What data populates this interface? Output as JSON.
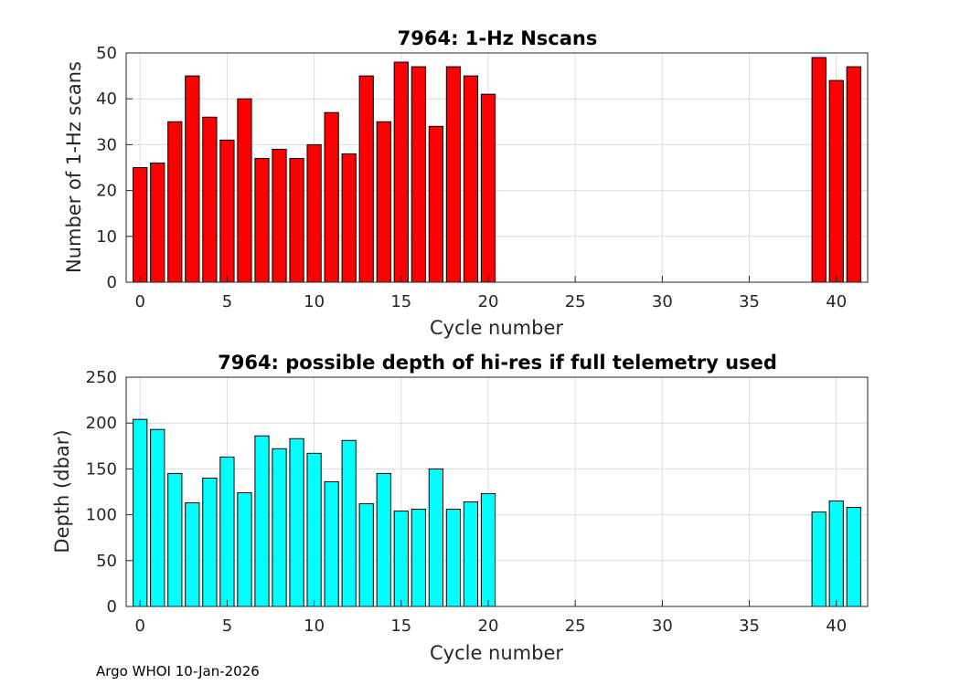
{
  "footnote": "Argo WHOI 10-Jan-2026",
  "chart_data": [
    {
      "type": "bar",
      "title": "7964: 1-Hz Nscans",
      "xlabel": "Cycle number",
      "ylabel": "Number of 1-Hz scans",
      "xlim": [
        -0.8,
        41.8
      ],
      "ylim": [
        0,
        50
      ],
      "xticks": [
        0,
        5,
        10,
        15,
        20,
        25,
        30,
        35,
        40
      ],
      "yticks": [
        0,
        10,
        20,
        30,
        40,
        50
      ],
      "grid": true,
      "bar_color": "#ff0000",
      "x": [
        0,
        1,
        2,
        3,
        4,
        5,
        6,
        7,
        8,
        9,
        10,
        11,
        12,
        13,
        14,
        15,
        16,
        17,
        18,
        19,
        20,
        39,
        40,
        41
      ],
      "values": [
        25,
        26,
        35,
        45,
        36,
        31,
        40,
        27,
        29,
        27,
        30,
        37,
        28,
        45,
        35,
        48,
        47,
        34,
        47,
        45,
        41,
        49,
        44,
        47
      ]
    },
    {
      "type": "bar",
      "title": "7964: possible depth of hi-res if full telemetry used",
      "xlabel": "Cycle number",
      "ylabel": "Depth (dbar)",
      "xlim": [
        -0.8,
        41.8
      ],
      "ylim": [
        0,
        250
      ],
      "xticks": [
        0,
        5,
        10,
        15,
        20,
        25,
        30,
        35,
        40
      ],
      "yticks": [
        0,
        50,
        100,
        150,
        200,
        250
      ],
      "grid": true,
      "bar_color": "#00ffff",
      "x": [
        0,
        1,
        2,
        3,
        4,
        5,
        6,
        7,
        8,
        9,
        10,
        11,
        12,
        13,
        14,
        15,
        16,
        17,
        18,
        19,
        20,
        39,
        40,
        41
      ],
      "values": [
        204,
        193,
        145,
        113,
        140,
        163,
        124,
        186,
        172,
        183,
        167,
        136,
        181,
        112,
        145,
        104,
        106,
        150,
        106,
        114,
        123,
        103,
        115,
        108
      ]
    }
  ]
}
